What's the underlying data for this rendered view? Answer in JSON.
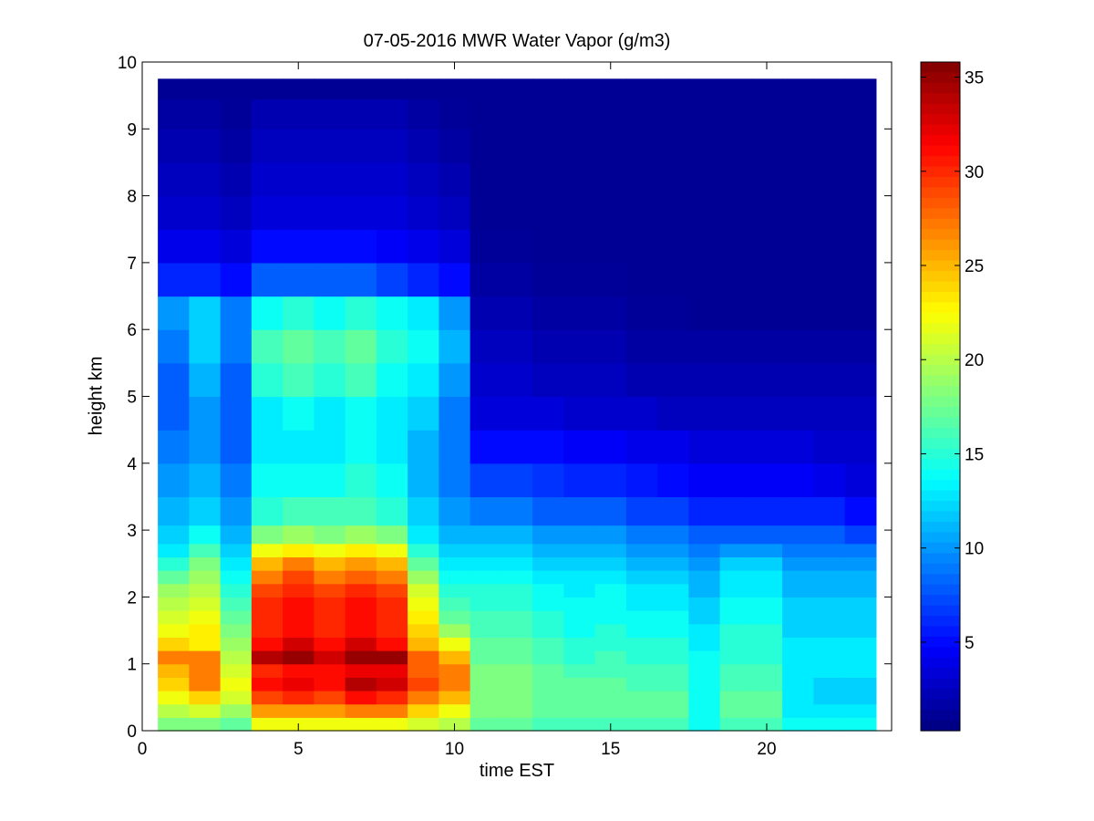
{
  "chart_data": {
    "type": "heatmap",
    "title": "07-05-2016 MWR Water Vapor (g/m3)",
    "xlabel": "time EST",
    "ylabel": "height km",
    "xlim": [
      0,
      24
    ],
    "ylim": [
      0,
      10
    ],
    "xticks": [
      0,
      5,
      10,
      15,
      20
    ],
    "yticks": [
      0,
      1,
      2,
      3,
      4,
      5,
      6,
      7,
      8,
      9,
      10
    ],
    "colorbar": {
      "colormap": "jet",
      "range": [
        0.3,
        35.8
      ],
      "ticks": [
        5,
        10,
        15,
        20,
        25,
        30,
        35
      ],
      "position": "right"
    },
    "x": [
      1,
      2,
      3,
      4,
      5,
      6,
      7,
      8,
      9,
      10,
      11,
      12,
      13,
      14,
      15,
      16,
      17,
      18,
      19,
      20,
      21,
      22,
      23
    ],
    "heights_km": [
      0.1,
      0.3,
      0.5,
      0.7,
      0.9,
      1.1,
      1.3,
      1.5,
      1.7,
      1.9,
      2.1,
      2.3,
      2.5,
      2.7,
      2.9,
      3.25,
      3.75,
      4.25,
      4.75,
      5.25,
      5.75,
      6.25,
      6.75,
      7.25,
      7.75,
      8.25,
      8.75,
      9.25,
      9.65
    ],
    "profiles": [
      {
        "time": 1,
        "values": [
          18,
          20,
          22,
          24,
          25,
          27,
          24,
          22,
          21,
          20,
          19,
          17,
          15,
          13,
          12,
          11,
          10,
          9,
          8,
          8,
          9,
          10,
          6,
          4,
          3,
          2.5,
          2,
          1.5,
          1
        ]
      },
      {
        "time": 2,
        "values": [
          18,
          21,
          24,
          27,
          27,
          27,
          23,
          23,
          22,
          21,
          20,
          19,
          18,
          16,
          14,
          12,
          11,
          10,
          10,
          11,
          12,
          12,
          6,
          4,
          3,
          2.5,
          2,
          1.5,
          1
        ]
      },
      {
        "time": 3,
        "values": [
          17,
          19,
          21,
          22,
          21,
          20,
          19,
          18,
          17,
          16,
          15,
          14,
          13,
          12,
          11,
          10,
          9,
          8,
          8,
          8,
          9,
          9,
          5,
          3.5,
          2.5,
          2,
          1.5,
          1.2,
          1
        ]
      },
      {
        "time": 4,
        "values": [
          22,
          26,
          29,
          31,
          30,
          34,
          31,
          30,
          30,
          30,
          29,
          27,
          25,
          22,
          18,
          15,
          14,
          13,
          13,
          15,
          16,
          14,
          8,
          5,
          3.5,
          3,
          2.5,
          2,
          1
        ]
      },
      {
        "time": 5,
        "values": [
          22,
          26,
          30,
          32,
          31,
          35,
          33,
          31,
          31,
          31,
          30,
          29,
          27,
          23,
          19,
          16,
          14,
          13,
          14,
          16,
          17,
          15,
          8,
          5,
          3.5,
          3,
          2.5,
          2,
          1
        ]
      },
      {
        "time": 6,
        "values": [
          22,
          26,
          29,
          31,
          31,
          33,
          31,
          30,
          30,
          30,
          29,
          27,
          25,
          22,
          18,
          16,
          14,
          13,
          13,
          15,
          16,
          14,
          8,
          5,
          3.5,
          3,
          2.5,
          2,
          1
        ]
      },
      {
        "time": 7,
        "values": [
          22,
          27,
          31,
          34,
          32,
          35,
          33,
          31,
          31,
          31,
          30,
          28,
          26,
          23,
          19,
          16,
          15,
          14,
          14,
          16,
          17,
          15,
          8,
          5,
          3.5,
          3,
          2.5,
          2,
          1
        ]
      },
      {
        "time": 8,
        "values": [
          22,
          27,
          30,
          33,
          32,
          35,
          31,
          30,
          30,
          30,
          29,
          27,
          25,
          22,
          18,
          15,
          14,
          13,
          13,
          14,
          15,
          14,
          7,
          4.5,
          3.5,
          3,
          2.5,
          2,
          1
        ]
      },
      {
        "time": 9,
        "values": [
          21,
          24,
          27,
          29,
          28,
          28,
          25,
          24,
          23,
          22,
          21,
          19,
          17,
          15,
          13,
          12,
          11,
          11,
          12,
          13,
          14,
          13,
          6,
          4,
          3,
          2.5,
          2,
          1.5,
          1
        ]
      },
      {
        "time": 10,
        "values": [
          20,
          22,
          25,
          27,
          27,
          25,
          22,
          19,
          17,
          16,
          15,
          14,
          13,
          12,
          11,
          10,
          9,
          9,
          9,
          10,
          11,
          10,
          5,
          3.5,
          2.5,
          2,
          1.5,
          1.2,
          1
        ]
      },
      {
        "time": 11,
        "values": [
          17,
          18,
          18,
          18,
          18,
          17,
          17,
          16,
          16,
          15,
          15,
          14,
          13,
          12,
          11,
          9,
          7,
          5,
          3.5,
          3,
          2.5,
          2,
          1.5,
          1.2,
          1,
          1,
          1,
          1,
          1
        ]
      },
      {
        "time": 12,
        "values": [
          17,
          18,
          18,
          18,
          18,
          17,
          17,
          16,
          16,
          15,
          15,
          14,
          13,
          12,
          11,
          9,
          7,
          5,
          3.5,
          3,
          2.5,
          2,
          1.5,
          1.2,
          1,
          1,
          1,
          1,
          1
        ]
      },
      {
        "time": 13,
        "values": [
          16,
          17,
          17,
          17,
          17,
          16,
          16,
          15,
          15,
          14,
          14,
          13,
          12,
          11,
          10,
          8,
          6.5,
          5,
          3.5,
          2.5,
          2,
          1.5,
          1.2,
          1,
          1,
          1,
          1,
          1,
          1
        ]
      },
      {
        "time": 14,
        "values": [
          16,
          17,
          17,
          17,
          16,
          15,
          15,
          14,
          14,
          14,
          13,
          13,
          12,
          11,
          10,
          8,
          6,
          4.5,
          3,
          2.5,
          2,
          1.5,
          1.2,
          1,
          1,
          1,
          1,
          1,
          1
        ]
      },
      {
        "time": 15,
        "values": [
          16,
          17,
          17,
          17,
          16,
          16,
          15,
          15,
          14,
          14,
          14,
          13,
          12,
          11,
          10,
          8,
          6,
          4.5,
          3,
          2.5,
          2,
          1.5,
          1.2,
          1,
          1,
          1,
          1,
          1,
          1
        ]
      },
      {
        "time": 16,
        "values": [
          16,
          17,
          17,
          16,
          16,
          15,
          15,
          14,
          14,
          13,
          13,
          12,
          11,
          10,
          9,
          7,
          5.5,
          4,
          3,
          2,
          1.5,
          1.2,
          1,
          1,
          1,
          1,
          1,
          1,
          1
        ]
      },
      {
        "time": 17,
        "values": [
          16,
          17,
          17,
          16,
          16,
          15,
          15,
          14,
          14,
          13,
          13,
          12,
          11,
          10,
          9,
          7,
          5,
          4,
          2.5,
          2,
          1.5,
          1.2,
          1,
          1,
          1,
          1,
          1,
          1,
          1
        ]
      },
      {
        "time": 18,
        "values": [
          14,
          14,
          14,
          14,
          14,
          14,
          13,
          13,
          12,
          12,
          11,
          11,
          10,
          9,
          8,
          6,
          4.5,
          3.5,
          2.5,
          2,
          1.5,
          1,
          1,
          1,
          1,
          1,
          1,
          1,
          1
        ]
      },
      {
        "time": 19,
        "values": [
          16,
          17,
          17,
          16,
          16,
          15,
          15,
          15,
          14,
          14,
          13,
          13,
          12,
          10,
          8,
          6,
          4.5,
          3.5,
          2.5,
          2,
          1.5,
          1,
          1,
          1,
          1,
          1,
          1,
          1,
          1
        ]
      },
      {
        "time": 20,
        "values": [
          16,
          17,
          17,
          16,
          16,
          15,
          15,
          15,
          14,
          14,
          13,
          13,
          12,
          10,
          8,
          6,
          4.5,
          3.5,
          2.5,
          2,
          1.5,
          1,
          1,
          1,
          1,
          1,
          1,
          1,
          1
        ]
      },
      {
        "time": 21,
        "values": [
          14,
          13,
          13,
          13,
          13,
          13,
          13,
          12,
          12,
          12,
          11,
          11,
          10,
          9,
          8,
          6,
          4.5,
          3.5,
          2.5,
          2,
          1.5,
          1,
          1,
          1,
          1,
          1,
          1,
          1,
          1
        ]
      },
      {
        "time": 22,
        "values": [
          14,
          13,
          12,
          12,
          13,
          13,
          13,
          12,
          12,
          12,
          11,
          11,
          10,
          9,
          8,
          6,
          4,
          3,
          2.5,
          2,
          1.5,
          1,
          1,
          1,
          1,
          1,
          1,
          1,
          1
        ]
      },
      {
        "time": 23,
        "values": [
          14,
          13,
          12,
          12,
          13,
          13,
          13,
          12,
          12,
          12,
          11,
          11,
          10,
          9,
          7,
          5,
          3.5,
          3,
          2.5,
          2,
          1.5,
          1,
          1,
          1,
          1,
          1,
          1,
          1,
          1
        ]
      }
    ]
  }
}
